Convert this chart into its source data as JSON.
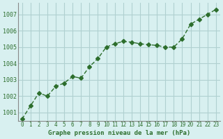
{
  "x": [
    0,
    1,
    2,
    3,
    4,
    5,
    6,
    7,
    8,
    9,
    10,
    11,
    12,
    13,
    14,
    15,
    16,
    17,
    18,
    19,
    20,
    21,
    22,
    23
  ],
  "y": [
    1000.6,
    1001.4,
    1002.2,
    1002.0,
    1002.6,
    1002.8,
    1003.2,
    1003.1,
    1003.8,
    1004.3,
    1005.0,
    1005.2,
    1005.35,
    1005.3,
    1005.2,
    1005.15,
    1005.1,
    1005.0,
    1005.0,
    1005.5,
    1006.4,
    1006.7,
    1007.0,
    1007.3
  ],
  "line_color": "#2d6e2d",
  "marker": "D",
  "marker_size": 3,
  "bg_color": "#d8f0f0",
  "grid_color": "#b0d0d0",
  "xlabel": "Graphe pression niveau de la mer (hPa)",
  "xlabel_color": "#2d6e2d",
  "tick_label_color": "#2d6e2d",
  "ylim": [
    1000.5,
    1007.7
  ],
  "yticks": [
    1001,
    1002,
    1003,
    1004,
    1005,
    1006,
    1007
  ],
  "xlim": [
    -0.5,
    23.5
  ],
  "xticks": [
    0,
    1,
    2,
    3,
    4,
    5,
    6,
    7,
    8,
    9,
    10,
    11,
    12,
    13,
    14,
    15,
    16,
    17,
    18,
    19,
    20,
    21,
    22,
    23
  ]
}
